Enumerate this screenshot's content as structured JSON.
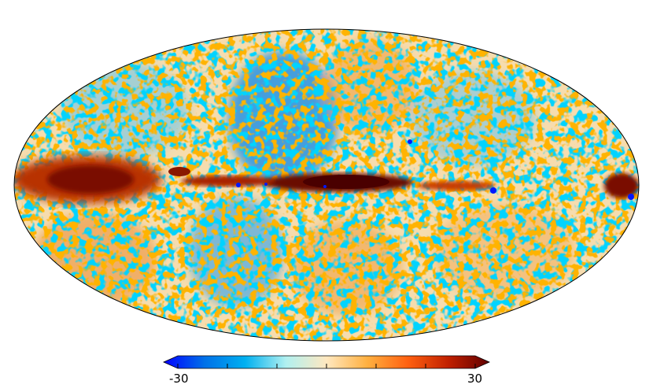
{
  "map": {
    "projection": "mollweide",
    "value_range": [
      -30,
      30
    ],
    "colorbar_min_label": "-30",
    "colorbar_max_label": "30",
    "colormap": [
      "#0000ff",
      "#0070e8",
      "#00b0f0",
      "#b0f0f0",
      "#ffe8c0",
      "#ffb040",
      "#ff6010",
      "#c02000",
      "#600000"
    ]
  }
}
